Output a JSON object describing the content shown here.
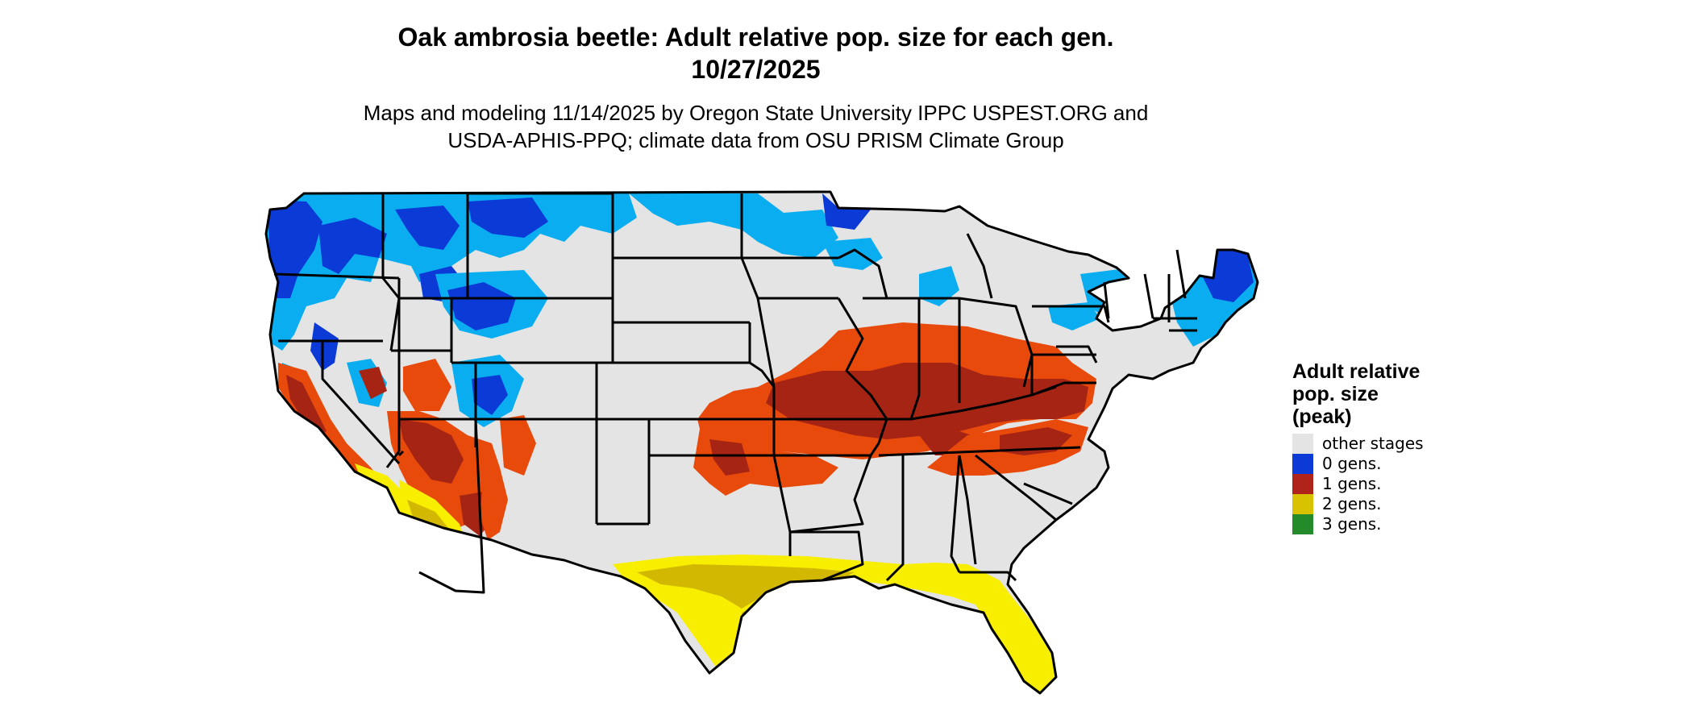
{
  "title_line1": "Oak ambrosia beetle: Adult relative pop. size for each gen.",
  "title_line2": "10/27/2025",
  "subtitle_line1": "Maps and modeling 11/14/2025 by Oregon State University IPPC USPEST.ORG and",
  "subtitle_line2": "USDA-APHIS-PPQ; climate data from OSU PRISM Climate Group",
  "legend": {
    "title_line1": "Adult relative",
    "title_line2": "pop. size",
    "title_line3": "(peak)",
    "items": [
      {
        "label": "other stages",
        "color": "#e4e4e4"
      },
      {
        "label": "0 gens.",
        "color": "#0b3ad6"
      },
      {
        "label": "1 gens.",
        "color": "#b0231a"
      },
      {
        "label": "2 gens.",
        "color": "#d9c300"
      },
      {
        "label": "3 gens.",
        "color": "#238b2a"
      }
    ]
  },
  "map_colors": {
    "land_other": "#e4e4e4",
    "gen0_dark": "#0b3ad6",
    "gen0_light": "#0aaef0",
    "gen1_dark": "#a62414",
    "gen1_light": "#e84a0c",
    "gen2_dark": "#d2b800",
    "gen2_light": "#f7ee00",
    "state_border": "#000000"
  }
}
